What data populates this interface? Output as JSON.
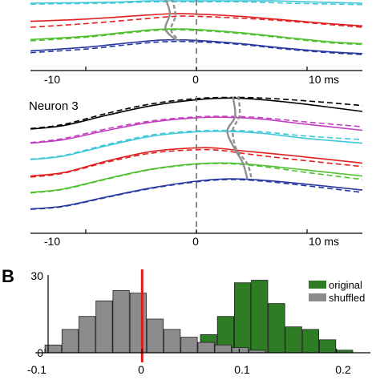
{
  "colors": {
    "black": "#000000",
    "magenta": "#c040c0",
    "cyan": "#40c8d8",
    "red": "#e02020",
    "green": "#50c030",
    "blue": "#2838a0",
    "gray_peak": "#909090",
    "hist_original": "#2e7d24",
    "hist_shuffled": "#8c8c8c",
    "zero_line_red": "#e01818"
  },
  "chart_data": [
    {
      "panel": "A-top",
      "type": "line",
      "title": "",
      "x_tick_labels": [
        "-10",
        "0",
        "10 ms"
      ],
      "x_ticks": [
        -10,
        0,
        10
      ],
      "xlim": [
        -15,
        15
      ],
      "curves": [
        {
          "color": "cyan",
          "style": "solid",
          "x": [
            -15,
            -8,
            -4,
            0,
            4,
            7,
            10,
            15
          ],
          "y": [
            0.95,
            0.97,
            1.0,
            1.0,
            1.0,
            1.0,
            0.98,
            0.95
          ]
        },
        {
          "color": "cyan",
          "style": "dashed",
          "x": [
            -15,
            -8,
            -4,
            0,
            4,
            7,
            10,
            15
          ],
          "y": [
            0.93,
            0.95,
            0.98,
            0.98,
            0.98,
            0.96,
            0.94,
            0.92
          ]
        },
        {
          "color": "red",
          "style": "solid",
          "x": [
            -15,
            -10,
            -5,
            -2,
            0,
            4,
            8,
            12,
            15
          ],
          "y": [
            0.55,
            0.6,
            0.68,
            0.72,
            0.71,
            0.66,
            0.58,
            0.5,
            0.45
          ]
        },
        {
          "color": "red",
          "style": "dashed",
          "x": [
            -15,
            -10,
            -5,
            -2,
            0,
            4,
            8,
            12,
            15
          ],
          "y": [
            0.42,
            0.5,
            0.6,
            0.66,
            0.66,
            0.62,
            0.56,
            0.48,
            0.42
          ]
        },
        {
          "color": "green",
          "style": "solid",
          "x": [
            -15,
            -10,
            -6,
            -3,
            0,
            4,
            8,
            12,
            15
          ],
          "y": [
            0.15,
            0.22,
            0.32,
            0.38,
            0.37,
            0.3,
            0.2,
            0.1,
            0.06
          ]
        },
        {
          "color": "green",
          "style": "dashed",
          "x": [
            -15,
            -10,
            -6,
            -3,
            0,
            4,
            8,
            12,
            15
          ],
          "y": [
            0.12,
            0.2,
            0.3,
            0.36,
            0.35,
            0.28,
            0.18,
            0.08,
            0.04
          ]
        },
        {
          "color": "blue",
          "style": "solid",
          "x": [
            -15,
            -10,
            -6,
            -3,
            0,
            4,
            8,
            12,
            15
          ],
          "y": [
            -0.1,
            -0.02,
            0.08,
            0.14,
            0.13,
            0.06,
            -0.04,
            -0.12,
            -0.16
          ]
        },
        {
          "color": "blue",
          "style": "dashed",
          "x": [
            -15,
            -10,
            -6,
            -3,
            0,
            4,
            8,
            12,
            15
          ],
          "y": [
            -0.14,
            -0.06,
            0.04,
            0.1,
            0.1,
            0.04,
            -0.06,
            -0.14,
            -0.18
          ]
        }
      ],
      "peak_paths": [
        {
          "style": "solid",
          "x": [
            -2.8,
            -2.4,
            -2.8,
            -1.8
          ],
          "y": [
            1.05,
            0.72,
            0.38,
            0.13
          ]
        },
        {
          "style": "dashed",
          "x": [
            -2.2,
            -1.9,
            -2.3,
            -1.5
          ],
          "y": [
            1.05,
            0.68,
            0.36,
            0.11
          ]
        }
      ]
    },
    {
      "panel": "A-bottom",
      "type": "line",
      "title": "Neuron 3",
      "x_tick_labels": [
        "-10",
        "0",
        "10 ms"
      ],
      "x_ticks": [
        -10,
        0,
        10
      ],
      "xlim": [
        -15,
        15
      ],
      "curves": [
        {
          "color": "black",
          "style": "solid",
          "x": [
            -15,
            -12,
            -8,
            -4,
            0,
            3,
            6,
            10,
            15
          ],
          "y": [
            5.3,
            5.45,
            5.9,
            6.3,
            6.55,
            6.62,
            6.55,
            6.35,
            6.05
          ]
        },
        {
          "color": "black",
          "style": "dashed",
          "x": [
            -15,
            -12,
            -8,
            -4,
            0,
            3,
            6,
            10,
            15
          ],
          "y": [
            5.32,
            5.5,
            5.98,
            6.38,
            6.6,
            6.65,
            6.62,
            6.5,
            6.3
          ]
        },
        {
          "color": "magenta",
          "style": "solid",
          "x": [
            -15,
            -12,
            -8,
            -4,
            0,
            3,
            6,
            10,
            15
          ],
          "y": [
            4.7,
            4.85,
            5.25,
            5.6,
            5.78,
            5.8,
            5.72,
            5.5,
            5.25
          ]
        },
        {
          "color": "magenta",
          "style": "dashed",
          "x": [
            -15,
            -12,
            -8,
            -4,
            0,
            3,
            6,
            10,
            15
          ],
          "y": [
            4.72,
            4.9,
            5.32,
            5.65,
            5.82,
            5.84,
            5.78,
            5.6,
            5.4
          ]
        },
        {
          "color": "cyan",
          "style": "solid",
          "x": [
            -15,
            -12,
            -8,
            -4,
            0,
            3,
            6,
            10,
            15
          ],
          "y": [
            4.0,
            4.15,
            4.6,
            5.0,
            5.18,
            5.2,
            5.12,
            4.9,
            4.7
          ]
        },
        {
          "color": "cyan",
          "style": "dashed",
          "x": [
            -15,
            -12,
            -8,
            -4,
            0,
            3,
            6,
            10,
            15
          ],
          "y": [
            4.02,
            4.18,
            4.65,
            5.05,
            5.22,
            5.24,
            5.18,
            5.0,
            4.85
          ]
        },
        {
          "color": "red",
          "style": "solid",
          "x": [
            -15,
            -12,
            -8,
            -4,
            0,
            2,
            4,
            8,
            15
          ],
          "y": [
            3.3,
            3.45,
            3.95,
            4.35,
            4.5,
            4.48,
            4.38,
            4.2,
            3.85
          ]
        },
        {
          "color": "red",
          "style": "dashed",
          "x": [
            -15,
            -12,
            -8,
            -4,
            0,
            2,
            4,
            8,
            15
          ],
          "y": [
            3.25,
            3.42,
            3.9,
            4.28,
            4.42,
            4.4,
            4.28,
            4.05,
            3.7
          ]
        },
        {
          "color": "green",
          "style": "solid",
          "x": [
            -15,
            -12,
            -8,
            -4,
            0,
            3,
            6,
            10,
            15
          ],
          "y": [
            2.6,
            2.75,
            3.2,
            3.6,
            3.82,
            3.85,
            3.75,
            3.55,
            3.3
          ]
        },
        {
          "color": "green",
          "style": "dashed",
          "x": [
            -15,
            -12,
            -8,
            -4,
            0,
            3,
            6,
            10,
            15
          ],
          "y": [
            2.58,
            2.73,
            3.18,
            3.58,
            3.8,
            3.82,
            3.7,
            3.45,
            3.15
          ]
        },
        {
          "color": "blue",
          "style": "solid",
          "x": [
            -15,
            -12,
            -8,
            -4,
            0,
            3,
            6,
            10,
            15
          ],
          "y": [
            1.9,
            2.02,
            2.42,
            2.8,
            3.08,
            3.18,
            3.12,
            2.95,
            2.7
          ]
        },
        {
          "color": "blue",
          "style": "dashed",
          "x": [
            -15,
            -12,
            -8,
            -4,
            0,
            3,
            6,
            10,
            15
          ],
          "y": [
            1.88,
            2.0,
            2.4,
            2.78,
            3.05,
            3.15,
            3.08,
            2.88,
            2.6
          ]
        }
      ],
      "peak_paths": [
        {
          "style": "solid",
          "x": [
            3.3,
            3.5,
            2.8,
            3.4,
            4.2,
            4.6
          ],
          "y": [
            6.68,
            5.85,
            5.22,
            4.5,
            3.85,
            3.18
          ]
        },
        {
          "style": "dashed",
          "x": [
            3.8,
            3.9,
            3.3,
            3.6,
            4.6,
            5.0
          ],
          "y": [
            6.7,
            5.88,
            5.26,
            4.45,
            3.82,
            3.15
          ]
        }
      ]
    },
    {
      "panel": "B",
      "type": "bar",
      "letter": "B",
      "x_tick_labels": [
        "-0.1",
        "0",
        "0.1",
        "0.2"
      ],
      "x_ticks": [
        -0.1,
        0,
        0.1,
        0.2
      ],
      "xlim": [
        -0.11,
        0.235
      ],
      "y_tick_labels": [
        "30",
        "0"
      ],
      "y_ticks": [
        30,
        0
      ],
      "ylim": [
        0,
        30
      ],
      "bin_width": 0.0175,
      "zero_line_x": 0,
      "series": [
        {
          "name": "original",
          "color": "hist_original",
          "bin_starts": [
            0.0075,
            0.025,
            0.0425,
            0.06,
            0.0775,
            0.095,
            0.1125,
            0.13,
            0.1475,
            0.165,
            0.1825,
            0.2
          ],
          "values": [
            0.5,
            2,
            3,
            7,
            14,
            27,
            28,
            19,
            10,
            9,
            5,
            1
          ]
        },
        {
          "name": "shuffled",
          "color": "hist_shuffled",
          "bin_starts": [
            -0.1,
            -0.0825,
            -0.065,
            -0.0475,
            -0.03,
            -0.0125,
            0.005,
            0.0225,
            0.04,
            0.0575,
            0.075,
            0.0925,
            0.11
          ],
          "values": [
            3,
            9,
            14,
            20,
            24,
            23,
            13,
            9,
            6,
            4,
            3,
            2,
            1
          ]
        }
      ],
      "legend": [
        "original",
        "shuffled"
      ],
      "legend_placement": "top-right"
    }
  ]
}
